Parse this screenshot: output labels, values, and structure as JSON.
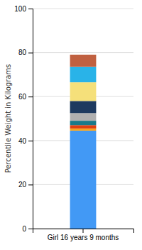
{
  "chart_data": {
    "type": "bar",
    "stacked": true,
    "categories": [
      "Girl 16 years 9 months"
    ],
    "series": [
      {
        "color": "#4299f5",
        "values": [
          44.5
        ]
      },
      {
        "color": "#f5a623",
        "values": [
          1.0
        ]
      },
      {
        "color": "#e04010",
        "values": [
          1.5
        ]
      },
      {
        "color": "#1a7a8a",
        "values": [
          2.0
        ]
      },
      {
        "color": "#b0b0b0",
        "values": [
          3.5
        ]
      },
      {
        "color": "#1e3a5f",
        "values": [
          5.5
        ]
      },
      {
        "color": "#f5e07a",
        "values": [
          8.5
        ]
      },
      {
        "color": "#29b3e8",
        "values": [
          7.0
        ]
      },
      {
        "color": "#c06040",
        "values": [
          5.5
        ]
      }
    ],
    "ylabel": "Percentile Weight in Kilograms",
    "ylim": [
      0,
      100
    ],
    "yticks": [
      0,
      20,
      40,
      60,
      80,
      100
    ],
    "grid": true
  }
}
